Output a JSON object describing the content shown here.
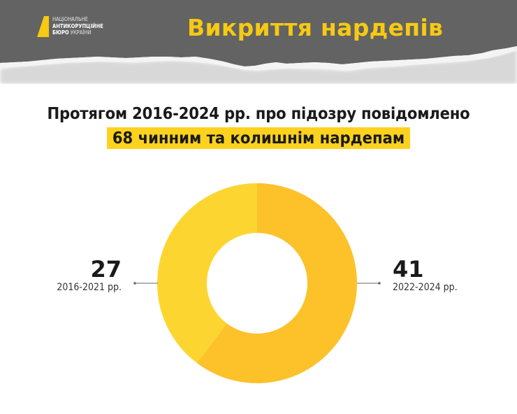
{
  "header": {
    "logo": {
      "icon": "nabu-logo-mark",
      "line1": "НАЦІОНАЛЬНЕ",
      "line2": "АНТИКОРУПЦІЙНЕ",
      "line3_bold": "БЮРО",
      "line3_rest": "УКРАЇНИ"
    },
    "title": "Викриття нардепів",
    "background_color": "#636363",
    "title_color": "#F6C913"
  },
  "headline": {
    "line1": "Протягом 2016-2024 рр. про підозру повідомлено",
    "line2_highlighted": "68 чинним та колишнім нардепам",
    "highlight_color": "#FDD21F"
  },
  "stats": {
    "left": {
      "value": "27",
      "label": "2016-2021 рр."
    },
    "right": {
      "value": "41",
      "label": "2022-2024 рр."
    }
  },
  "chart_data": {
    "type": "pie",
    "subtype": "donut",
    "title": "Протягом 2016-2024 рр. про підозру повідомлено 68 чинним та колишнім нардепам",
    "total": 68,
    "categories": [
      "2022-2024 рр.",
      "2016-2021 рр."
    ],
    "values": [
      41,
      27
    ],
    "colors": [
      "#FDC22A",
      "#FDD530"
    ],
    "start_angle_deg": 0,
    "direction": "clockwise",
    "legend_position": "side-labels"
  }
}
